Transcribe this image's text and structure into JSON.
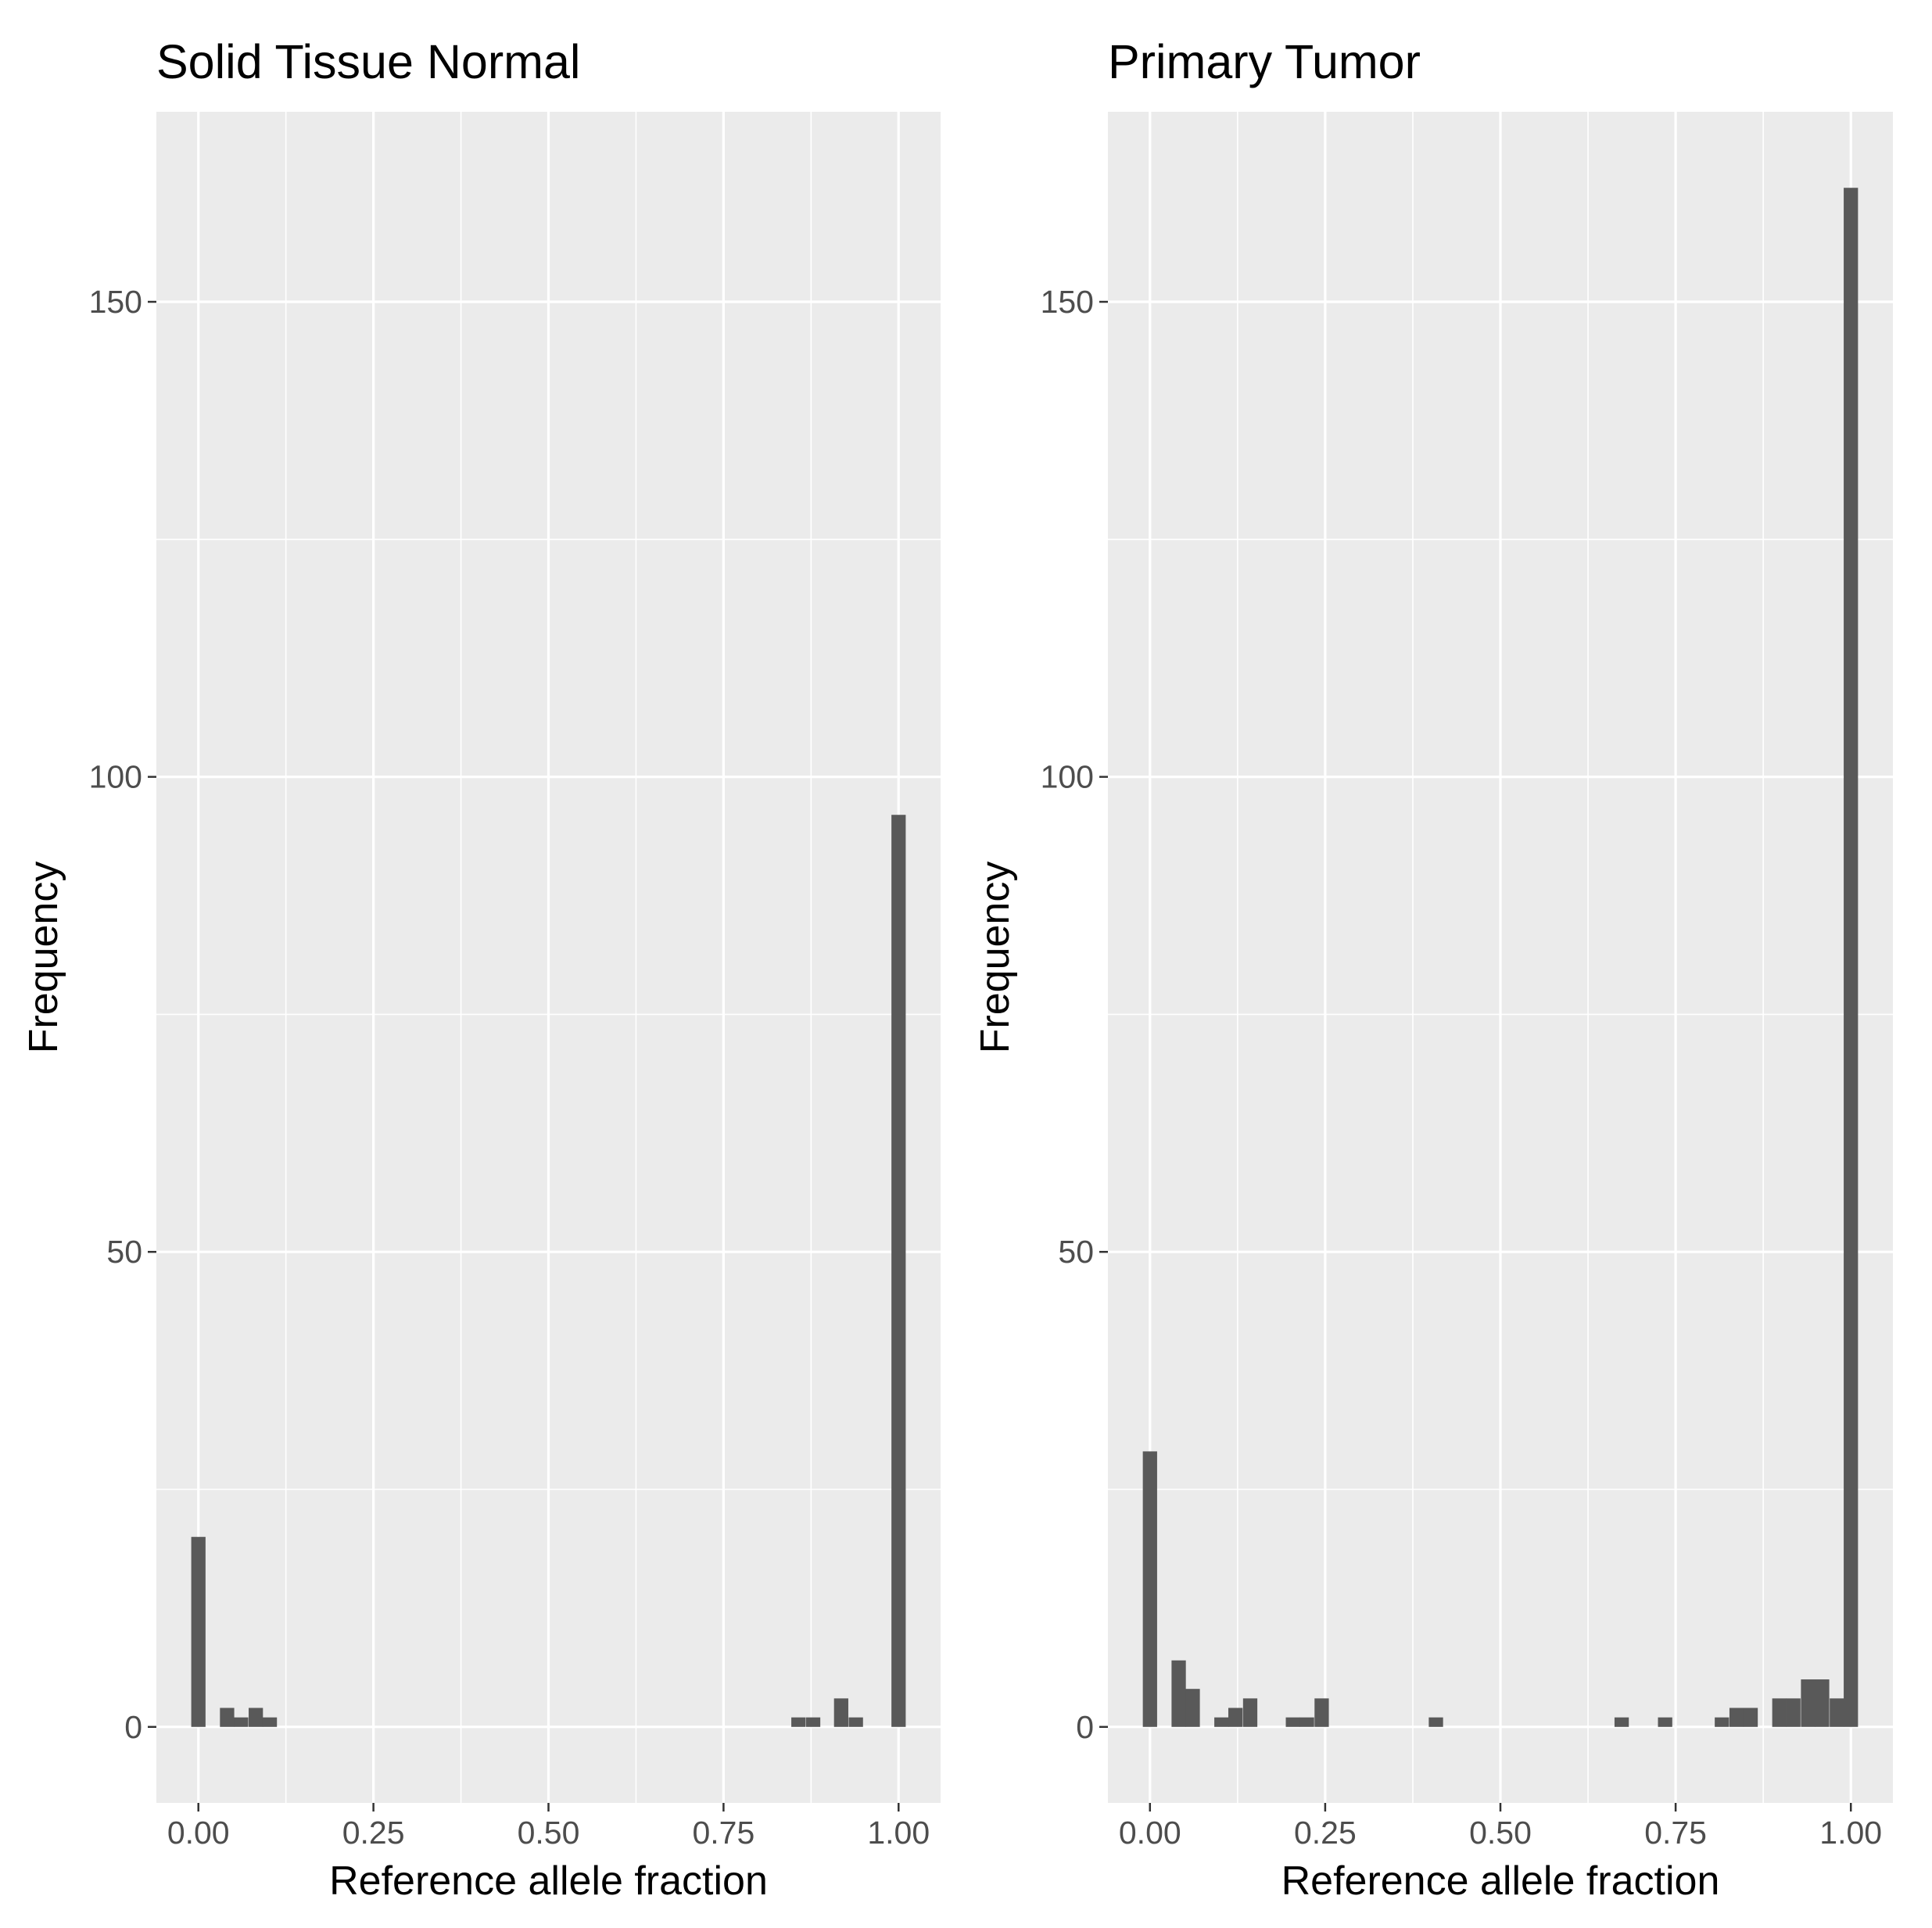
{
  "colors": {
    "panel_background": "#ebebeb",
    "grid_major": "#ffffff",
    "grid_minor": "#f7f7f7",
    "bar_fill": "#595959",
    "tick_mark": "#333333",
    "tick_label": "#4d4d4d",
    "text": "#000000"
  },
  "chart_data": [
    {
      "type": "bar",
      "title": "Solid Tissue Normal",
      "xlabel": "Reference allele fraction",
      "ylabel": "Frequency",
      "xlim": [
        -0.06,
        1.06
      ],
      "ylim": [
        -8,
        170
      ],
      "x_ticks": [
        0,
        0.25,
        0.5,
        0.75,
        1
      ],
      "x_tick_labels": [
        "0.00",
        "0.25",
        "0.50",
        "0.75",
        "1.00"
      ],
      "y_ticks": [
        0,
        50,
        100,
        150
      ],
      "y_tick_labels": [
        "0",
        "50",
        "100",
        "150"
      ],
      "grid": true,
      "bin_width": 0.0204,
      "bins_x": [
        0,
        0.041,
        0.061,
        0.082,
        0.102,
        0.857,
        0.878,
        0.918,
        0.939,
        1.0
      ],
      "values": [
        20,
        2,
        1,
        2,
        1,
        1,
        1,
        3,
        1,
        96
      ]
    },
    {
      "type": "bar",
      "title": "Primary Tumor",
      "xlabel": "Reference allele fraction",
      "ylabel": "Frequency",
      "xlim": [
        -0.06,
        1.06
      ],
      "ylim": [
        -8,
        170
      ],
      "x_ticks": [
        0,
        0.25,
        0.5,
        0.75,
        1
      ],
      "x_tick_labels": [
        "0.00",
        "0.25",
        "0.50",
        "0.75",
        "1.00"
      ],
      "y_ticks": [
        0,
        50,
        100,
        150
      ],
      "y_tick_labels": [
        "0",
        "50",
        "100",
        "150"
      ],
      "grid": true,
      "bin_width": 0.0204,
      "bins_x": [
        0,
        0.041,
        0.061,
        0.102,
        0.122,
        0.143,
        0.204,
        0.224,
        0.245,
        0.408,
        0.673,
        0.735,
        0.816,
        0.837,
        0.857,
        0.898,
        0.918,
        0.939,
        0.959,
        0.98,
        1.0
      ],
      "values": [
        29,
        7,
        4,
        1,
        2,
        3,
        1,
        1,
        3,
        1,
        1,
        1,
        1,
        2,
        2,
        3,
        3,
        5,
        5,
        3,
        162
      ]
    }
  ]
}
